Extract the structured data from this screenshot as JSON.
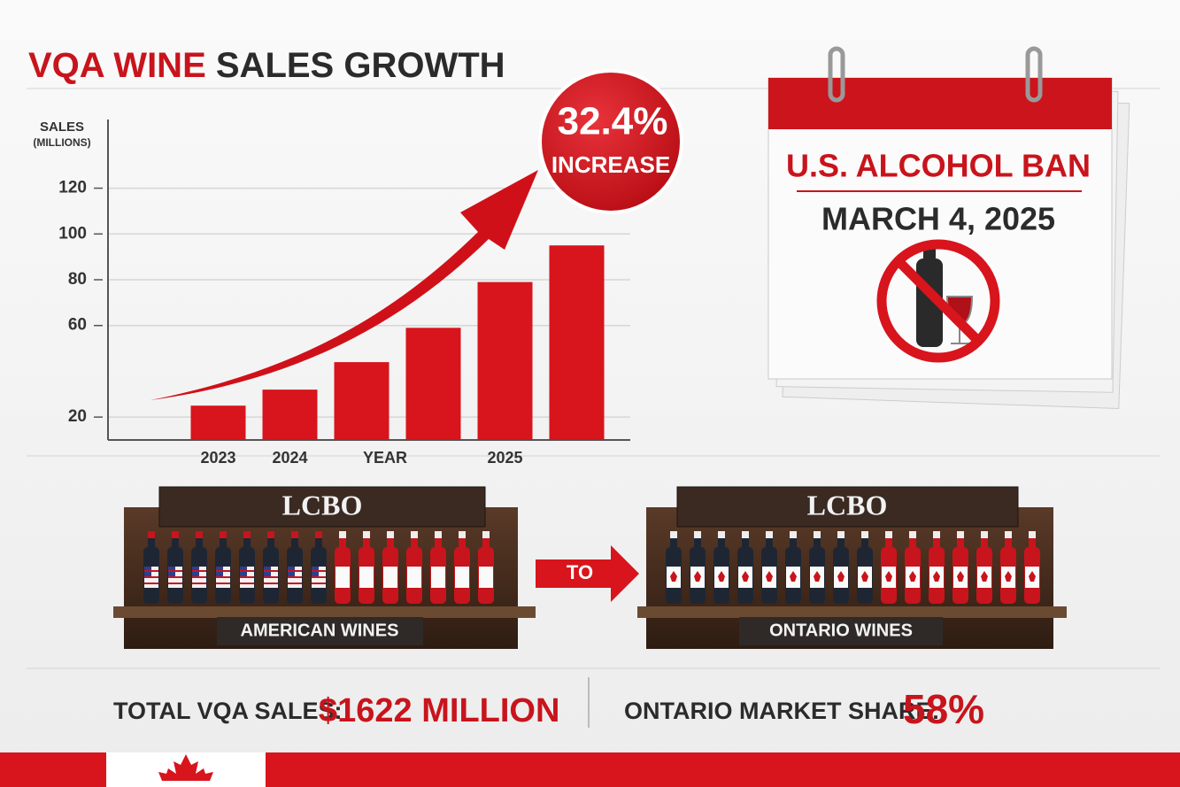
{
  "chart_data": {
    "type": "bar",
    "title": {
      "highlight": "VQA WINE",
      "rest": "SALES GROWTH"
    },
    "y_label": [
      "SALES",
      "(MILLIONS)"
    ],
    "x_label": "YEAR",
    "categories": [
      "2023",
      "2024",
      null,
      null,
      "2025",
      null
    ],
    "values": [
      25,
      32,
      44,
      59,
      79,
      95
    ],
    "color": "#d8141c",
    "ylim": [
      10,
      150
    ],
    "yticks": [
      20,
      60,
      80,
      100,
      120
    ],
    "grid": true,
    "annotation": {
      "value": "32.4%",
      "text": "INCREASE"
    }
  },
  "calendar": {
    "title": "U.S. ALCOHOL BAN",
    "date": "MARCH 4, 2025"
  },
  "shelves": {
    "left": {
      "sign": "LCBO",
      "label": "AMERICAN WINES"
    },
    "connector": "TO",
    "right": {
      "sign": "LCBO",
      "label": "ONTARIO WINES"
    }
  },
  "footer": {
    "sales_label": "TOTAL VQA SALES:",
    "sales_value": "$1622 MILLION",
    "share_label": "ONTARIO MARKET SHARE:",
    "share_value": "58%"
  }
}
